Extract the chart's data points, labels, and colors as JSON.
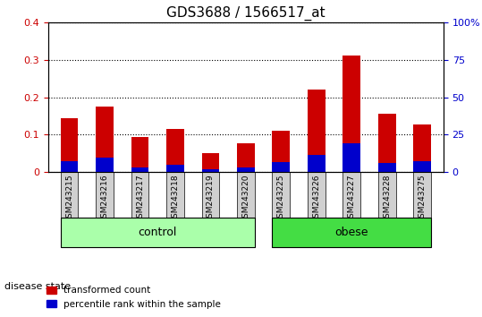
{
  "title": "GDS3688 / 1566517_at",
  "samples": [
    "GSM243215",
    "GSM243216",
    "GSM243217",
    "GSM243218",
    "GSM243219",
    "GSM243220",
    "GSM243225",
    "GSM243226",
    "GSM243227",
    "GSM243228",
    "GSM243275"
  ],
  "transformed_count": [
    0.145,
    0.175,
    0.095,
    0.115,
    0.052,
    0.078,
    0.11,
    0.22,
    0.31,
    0.155,
    0.128
  ],
  "percentile_rank": [
    0.03,
    0.04,
    0.013,
    0.02,
    0.008,
    0.012,
    0.028,
    0.045,
    0.078,
    0.025,
    0.03
  ],
  "groups": [
    {
      "label": "control",
      "indices": [
        0,
        1,
        2,
        3,
        4,
        5
      ],
      "color": "#aaffaa"
    },
    {
      "label": "obese",
      "indices": [
        6,
        7,
        8,
        9,
        10
      ],
      "color": "#44dd44"
    }
  ],
  "ylim_left": [
    0,
    0.4
  ],
  "ylim_right": [
    0,
    100
  ],
  "yticks_left": [
    0,
    0.1,
    0.2,
    0.3,
    0.4
  ],
  "yticks_right": [
    0,
    25,
    50,
    75,
    100
  ],
  "ytick_labels_left": [
    "0",
    "0.1",
    "0.2",
    "0.3",
    "0.4"
  ],
  "ytick_labels_right": [
    "0",
    "25",
    "50",
    "75",
    "100%"
  ],
  "bar_color_red": "#cc0000",
  "bar_color_blue": "#0000cc",
  "tick_label_color_left": "#cc0000",
  "tick_label_color_right": "#0000cc",
  "bar_width": 0.5,
  "grid_color": "black",
  "grid_linestyle": "dotted",
  "disease_state_label": "disease state",
  "legend_items": [
    "transformed count",
    "percentile rank within the sample"
  ],
  "xlabel_color_gray": "#888888",
  "group_label_control_color": "#aaffaa",
  "group_label_obese_color": "#33cc33"
}
